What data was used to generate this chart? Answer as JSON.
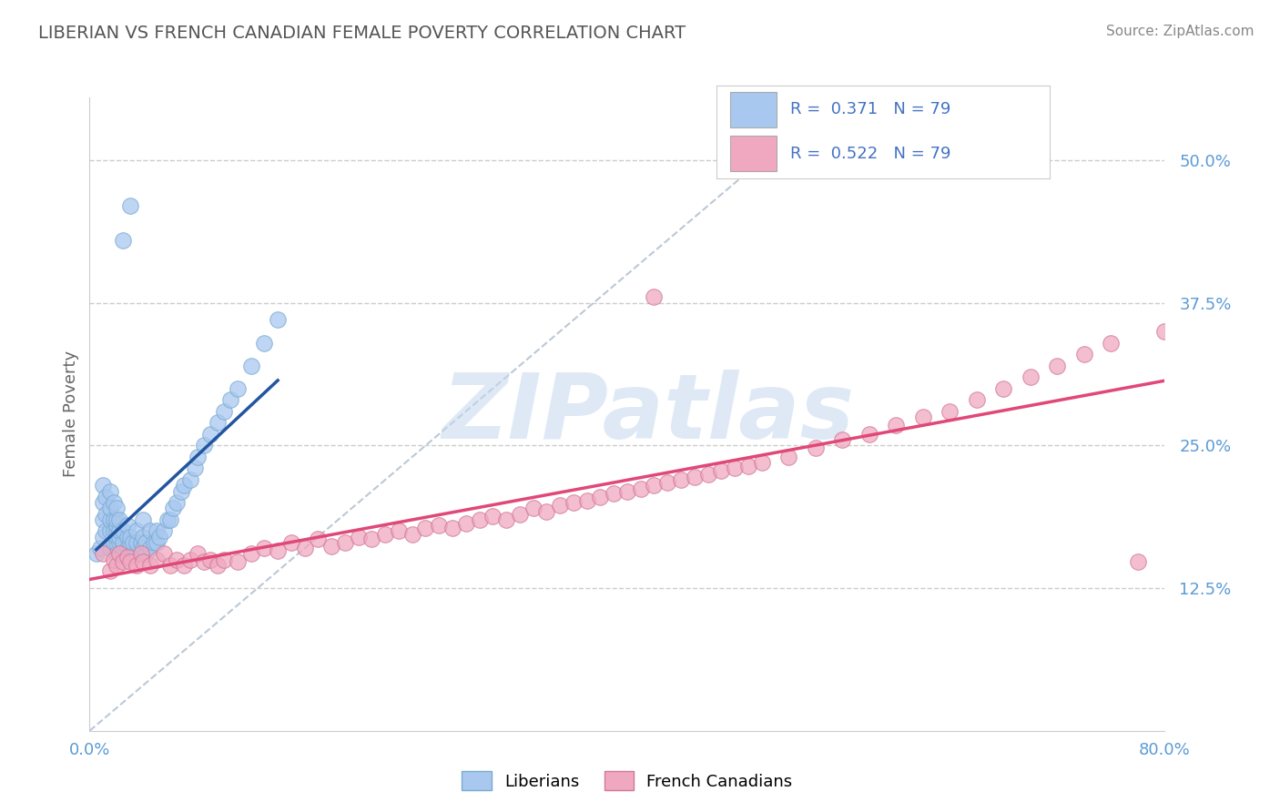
{
  "title": "LIBERIAN VS FRENCH CANADIAN FEMALE POVERTY CORRELATION CHART",
  "source_text": "Source: ZipAtlas.com",
  "ylabel": "Female Poverty",
  "xlim": [
    0.0,
    0.8
  ],
  "ylim": [
    0.0,
    0.555
  ],
  "ytick_positions": [
    0.125,
    0.25,
    0.375,
    0.5
  ],
  "ytick_labels": [
    "12.5%",
    "25.0%",
    "37.5%",
    "50.0%"
  ],
  "liberian_R": 0.371,
  "liberian_N": 79,
  "french_canadian_R": 0.522,
  "french_canadian_N": 79,
  "liberian_color": "#a8c8f0",
  "liberian_edge_color": "#7aaad0",
  "liberian_line_color": "#2255a0",
  "french_canadian_color": "#f0a8c0",
  "french_canadian_edge_color": "#d07898",
  "french_canadian_line_color": "#e04878",
  "legend_R_color": "#4472c4",
  "legend_N_color": "#333333",
  "background_color": "#ffffff",
  "grid_color": "#cccccc",
  "watermark": "ZIPatlas",
  "ref_line_color": "#aabbcc",
  "liberian_x": [
    0.005,
    0.008,
    0.01,
    0.01,
    0.01,
    0.01,
    0.012,
    0.012,
    0.012,
    0.015,
    0.015,
    0.015,
    0.015,
    0.015,
    0.018,
    0.018,
    0.018,
    0.018,
    0.02,
    0.02,
    0.02,
    0.02,
    0.02,
    0.02,
    0.02,
    0.022,
    0.022,
    0.022,
    0.022,
    0.025,
    0.025,
    0.025,
    0.025,
    0.028,
    0.028,
    0.028,
    0.03,
    0.03,
    0.03,
    0.03,
    0.032,
    0.032,
    0.035,
    0.035,
    0.035,
    0.038,
    0.038,
    0.04,
    0.04,
    0.04,
    0.042,
    0.042,
    0.045,
    0.045,
    0.048,
    0.05,
    0.05,
    0.052,
    0.055,
    0.058,
    0.06,
    0.062,
    0.065,
    0.068,
    0.07,
    0.075,
    0.078,
    0.08,
    0.085,
    0.09,
    0.095,
    0.1,
    0.105,
    0.11,
    0.12,
    0.13,
    0.14,
    0.025,
    0.03
  ],
  "liberian_y": [
    0.155,
    0.16,
    0.17,
    0.185,
    0.2,
    0.215,
    0.175,
    0.19,
    0.205,
    0.16,
    0.175,
    0.185,
    0.195,
    0.21,
    0.165,
    0.175,
    0.185,
    0.2,
    0.155,
    0.165,
    0.17,
    0.175,
    0.18,
    0.185,
    0.195,
    0.165,
    0.17,
    0.175,
    0.185,
    0.155,
    0.16,
    0.165,
    0.175,
    0.16,
    0.17,
    0.18,
    0.155,
    0.16,
    0.165,
    0.17,
    0.155,
    0.165,
    0.155,
    0.165,
    0.175,
    0.155,
    0.165,
    0.16,
    0.17,
    0.185,
    0.155,
    0.165,
    0.16,
    0.175,
    0.165,
    0.165,
    0.175,
    0.17,
    0.175,
    0.185,
    0.185,
    0.195,
    0.2,
    0.21,
    0.215,
    0.22,
    0.23,
    0.24,
    0.25,
    0.26,
    0.27,
    0.28,
    0.29,
    0.3,
    0.32,
    0.34,
    0.36,
    0.43,
    0.46
  ],
  "french_canadian_x": [
    0.01,
    0.015,
    0.018,
    0.02,
    0.022,
    0.025,
    0.028,
    0.03,
    0.035,
    0.038,
    0.04,
    0.045,
    0.05,
    0.055,
    0.06,
    0.065,
    0.07,
    0.075,
    0.08,
    0.085,
    0.09,
    0.095,
    0.1,
    0.11,
    0.12,
    0.13,
    0.14,
    0.15,
    0.16,
    0.17,
    0.18,
    0.19,
    0.2,
    0.21,
    0.22,
    0.23,
    0.24,
    0.25,
    0.26,
    0.27,
    0.28,
    0.29,
    0.3,
    0.31,
    0.32,
    0.33,
    0.34,
    0.35,
    0.36,
    0.37,
    0.38,
    0.39,
    0.4,
    0.41,
    0.42,
    0.43,
    0.44,
    0.45,
    0.46,
    0.47,
    0.48,
    0.49,
    0.5,
    0.52,
    0.54,
    0.56,
    0.58,
    0.6,
    0.62,
    0.64,
    0.66,
    0.68,
    0.7,
    0.72,
    0.74,
    0.76,
    0.78,
    0.8,
    0.42
  ],
  "french_canadian_y": [
    0.155,
    0.14,
    0.15,
    0.145,
    0.155,
    0.148,
    0.152,
    0.148,
    0.145,
    0.155,
    0.148,
    0.145,
    0.15,
    0.155,
    0.145,
    0.15,
    0.145,
    0.15,
    0.155,
    0.148,
    0.15,
    0.145,
    0.15,
    0.148,
    0.155,
    0.16,
    0.158,
    0.165,
    0.16,
    0.168,
    0.162,
    0.165,
    0.17,
    0.168,
    0.172,
    0.175,
    0.172,
    0.178,
    0.18,
    0.178,
    0.182,
    0.185,
    0.188,
    0.185,
    0.19,
    0.195,
    0.192,
    0.198,
    0.2,
    0.202,
    0.205,
    0.208,
    0.21,
    0.212,
    0.215,
    0.218,
    0.22,
    0.222,
    0.225,
    0.228,
    0.23,
    0.232,
    0.235,
    0.24,
    0.248,
    0.255,
    0.26,
    0.268,
    0.275,
    0.28,
    0.29,
    0.3,
    0.31,
    0.32,
    0.33,
    0.34,
    0.148,
    0.35,
    0.38
  ]
}
